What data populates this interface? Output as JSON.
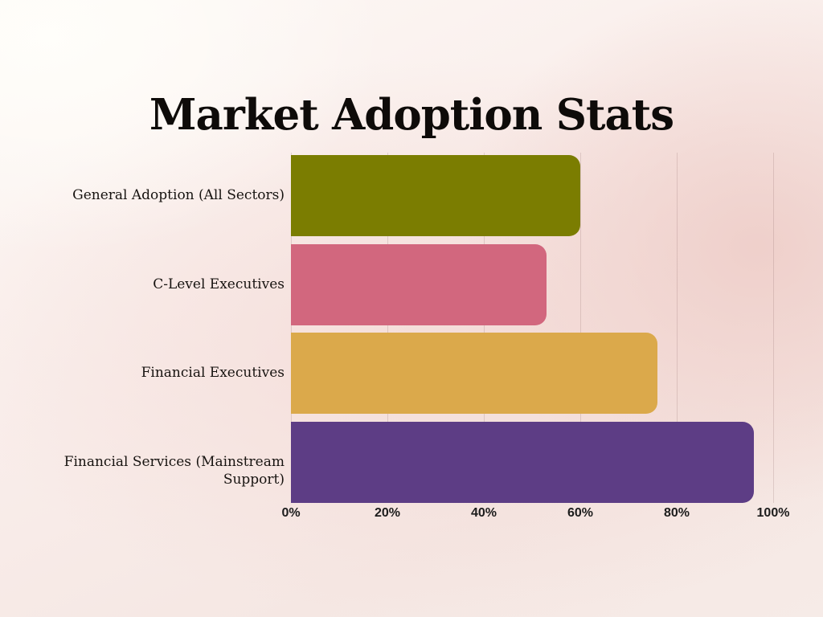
{
  "chart_data": {
    "type": "bar",
    "orientation": "horizontal",
    "title": "Market Adoption Stats",
    "categories": [
      "General Adoption (All Sectors)",
      "C-Level Executives",
      "Financial Executives",
      "Financial Services (Mainstream Support)"
    ],
    "values": [
      60,
      53,
      76,
      96
    ],
    "unit": "%",
    "colors": [
      "#7b7d01",
      "#d2677e",
      "#dba94b",
      "#5d3d85"
    ],
    "xlabel": "",
    "ylabel": "",
    "xlim": [
      0,
      100
    ],
    "x_ticks": [
      0,
      20,
      40,
      60,
      80,
      100
    ],
    "x_tick_labels": [
      "0%",
      "20%",
      "40%",
      "60%",
      "80%",
      "100%"
    ],
    "grid": "vertical",
    "legend": "none",
    "bar_corner_style": "rounded-right",
    "title_color": "#0e0b09",
    "background_accent": "#eecdc8"
  }
}
